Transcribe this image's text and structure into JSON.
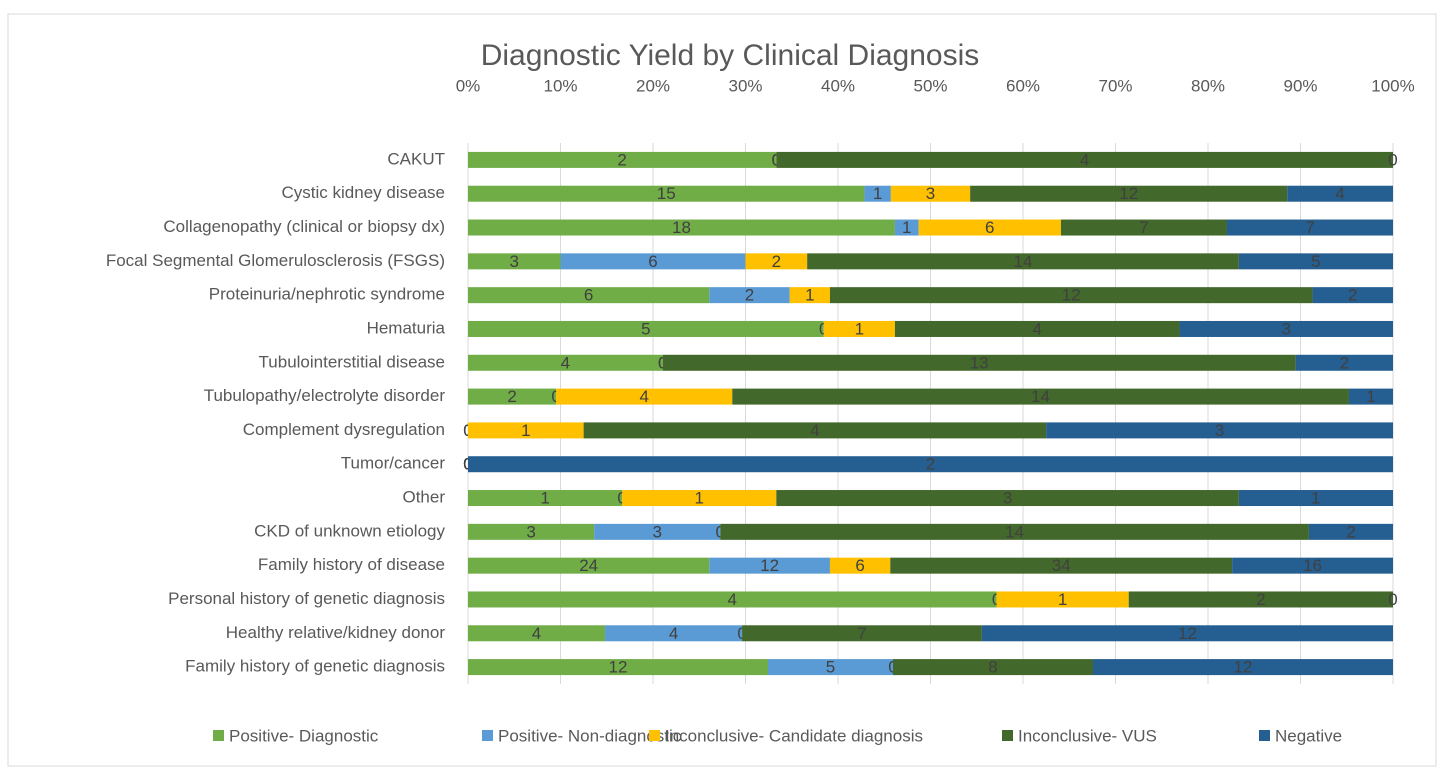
{
  "chart_data": {
    "type": "bar",
    "orientation": "horizontal",
    "stacking": "percent",
    "title": "Diagnostic Yield by Clinical Diagnosis",
    "categories": [
      "CAKUT",
      "Cystic kidney disease",
      "Collagenopathy (clinical or biopsy dx)",
      "Focal Segmental Glomerulosclerosis (FSGS)",
      "Proteinuria/nephrotic syndrome",
      "Hematuria",
      "Tubulointerstitial disease",
      "Tubulopathy/electrolyte disorder",
      "Complement dysregulation",
      "Tumor/cancer",
      "Other",
      "CKD of unknown etiology",
      "Family history of disease",
      "Personal history of genetic diagnosis",
      "Healthy relative/kidney donor",
      "Family history of genetic diagnosis"
    ],
    "series": [
      {
        "name": "Positive- Diagnostic",
        "color": "#70ad47",
        "values": [
          2,
          15,
          18,
          3,
          6,
          5,
          4,
          2,
          0,
          0,
          1,
          3,
          24,
          4,
          4,
          12
        ]
      },
      {
        "name": "Positive- Non-diagnostic",
        "color": "#5b9bd5",
        "values": [
          0,
          1,
          1,
          6,
          2,
          0,
          0,
          0,
          0,
          0,
          0,
          3,
          12,
          0,
          4,
          5
        ]
      },
      {
        "name": "Inconclusive- Candidate diagnosis",
        "color": "#ffc000",
        "values": [
          0,
          3,
          6,
          2,
          1,
          1,
          0,
          4,
          1,
          0,
          1,
          0,
          6,
          1,
          0,
          0
        ]
      },
      {
        "name": "Inconclusive- VUS",
        "color": "#43682b",
        "values": [
          4,
          12,
          7,
          14,
          12,
          4,
          13,
          14,
          4,
          0,
          3,
          14,
          34,
          2,
          7,
          8
        ]
      },
      {
        "name": "Negative",
        "color": "#255e91",
        "values": [
          0,
          4,
          7,
          5,
          2,
          3,
          2,
          1,
          3,
          2,
          1,
          2,
          16,
          0,
          12,
          12
        ]
      }
    ],
    "xlim": [
      0,
      100
    ],
    "xticks": [
      {
        "value": 0,
        "label": "0%"
      },
      {
        "value": 10,
        "label": "10%"
      },
      {
        "value": 20,
        "label": "20%"
      },
      {
        "value": 30,
        "label": "30%"
      },
      {
        "value": 40,
        "label": "40%"
      },
      {
        "value": 50,
        "label": "50%"
      },
      {
        "value": 60,
        "label": "60%"
      },
      {
        "value": 70,
        "label": "70%"
      },
      {
        "value": 80,
        "label": "80%"
      },
      {
        "value": 90,
        "label": "90%"
      },
      {
        "value": 100,
        "label": "100%"
      }
    ],
    "grid": true,
    "legend": "bottom"
  }
}
